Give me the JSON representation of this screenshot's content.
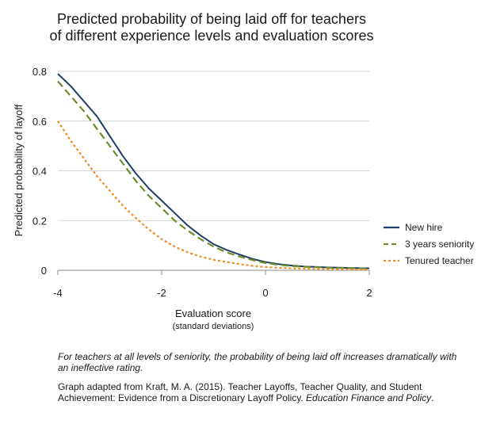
{
  "chart_data": {
    "type": "line",
    "title_lines": [
      "Predicted probability of being laid off for teachers",
      "of different experience levels and evaluation scores"
    ],
    "xlabel": "Evaluation score",
    "xlabel_sub": "(standard deviations)",
    "ylabel": "Predicted probability of layoff",
    "xlim": [
      -4,
      2
    ],
    "ylim": [
      0,
      0.8
    ],
    "x_ticks": [
      -4,
      -2,
      0,
      2
    ],
    "x_tick_labels": [
      "-4",
      "-2",
      "0",
      "2"
    ],
    "y_ticks": [
      0,
      0.2,
      0.4,
      0.6,
      0.8
    ],
    "y_tick_labels": [
      "0",
      "0.2",
      "0.4",
      "0.6",
      "0.8"
    ],
    "grid": "horizontal",
    "legend_position": "right",
    "series": [
      {
        "name": "New hire",
        "color": "#1f3f66",
        "style": "solid",
        "x": [
          -4,
          -3.75,
          -3.5,
          -3.25,
          -3,
          -2.75,
          -2.5,
          -2.25,
          -2,
          -1.75,
          -1.5,
          -1.25,
          -1,
          -0.75,
          -0.5,
          -0.25,
          0,
          0.25,
          0.5,
          0.75,
          1,
          1.25,
          1.5,
          1.75,
          2
        ],
        "y": [
          0.79,
          0.74,
          0.68,
          0.62,
          0.54,
          0.46,
          0.39,
          0.33,
          0.28,
          0.23,
          0.18,
          0.14,
          0.105,
          0.082,
          0.063,
          0.046,
          0.033,
          0.025,
          0.019,
          0.015,
          0.013,
          0.011,
          0.01,
          0.009,
          0.008
        ]
      },
      {
        "name": "3 years seniority",
        "color": "#6e8c2a",
        "style": "dashed",
        "x": [
          -4,
          -3.75,
          -3.5,
          -3.25,
          -3,
          -2.75,
          -2.5,
          -2.25,
          -2,
          -1.75,
          -1.5,
          -1.25,
          -1,
          -0.75,
          -0.5,
          -0.25,
          0,
          0.25,
          0.5,
          0.75,
          1,
          1.25,
          1.5,
          1.75,
          2
        ],
        "y": [
          0.76,
          0.7,
          0.64,
          0.57,
          0.5,
          0.43,
          0.36,
          0.3,
          0.25,
          0.2,
          0.16,
          0.125,
          0.095,
          0.072,
          0.055,
          0.041,
          0.029,
          0.022,
          0.017,
          0.014,
          0.012,
          0.01,
          0.009,
          0.008,
          0.007
        ]
      },
      {
        "name": "Tenured teacher",
        "color": "#f08c1e",
        "style": "dotted",
        "x": [
          -4,
          -3.75,
          -3.5,
          -3.25,
          -3,
          -2.75,
          -2.5,
          -2.25,
          -2,
          -1.75,
          -1.5,
          -1.25,
          -1,
          -0.75,
          -0.5,
          -0.25,
          0,
          0.25,
          0.5,
          0.75,
          1,
          1.25,
          1.5,
          1.75,
          2
        ],
        "y": [
          0.6,
          0.52,
          0.45,
          0.38,
          0.32,
          0.26,
          0.21,
          0.165,
          0.125,
          0.095,
          0.072,
          0.055,
          0.042,
          0.033,
          0.025,
          0.018,
          0.013,
          0.01,
          0.008,
          0.006,
          0.005,
          0.004,
          0.004,
          0.003,
          0.003
        ]
      }
    ]
  },
  "captions": {
    "note": "For teachers at all levels of seniority, the probability of being laid off increases dramatically with an ineffective rating.",
    "source_pre": "Graph adapted from Kraft, M. A. (2015). Teacher Layoffs, Teacher Quality, and Student Achievement: Evidence from a Discretionary Layoff Policy. ",
    "source_journal": "Education Finance and Policy",
    "source_post": "."
  }
}
